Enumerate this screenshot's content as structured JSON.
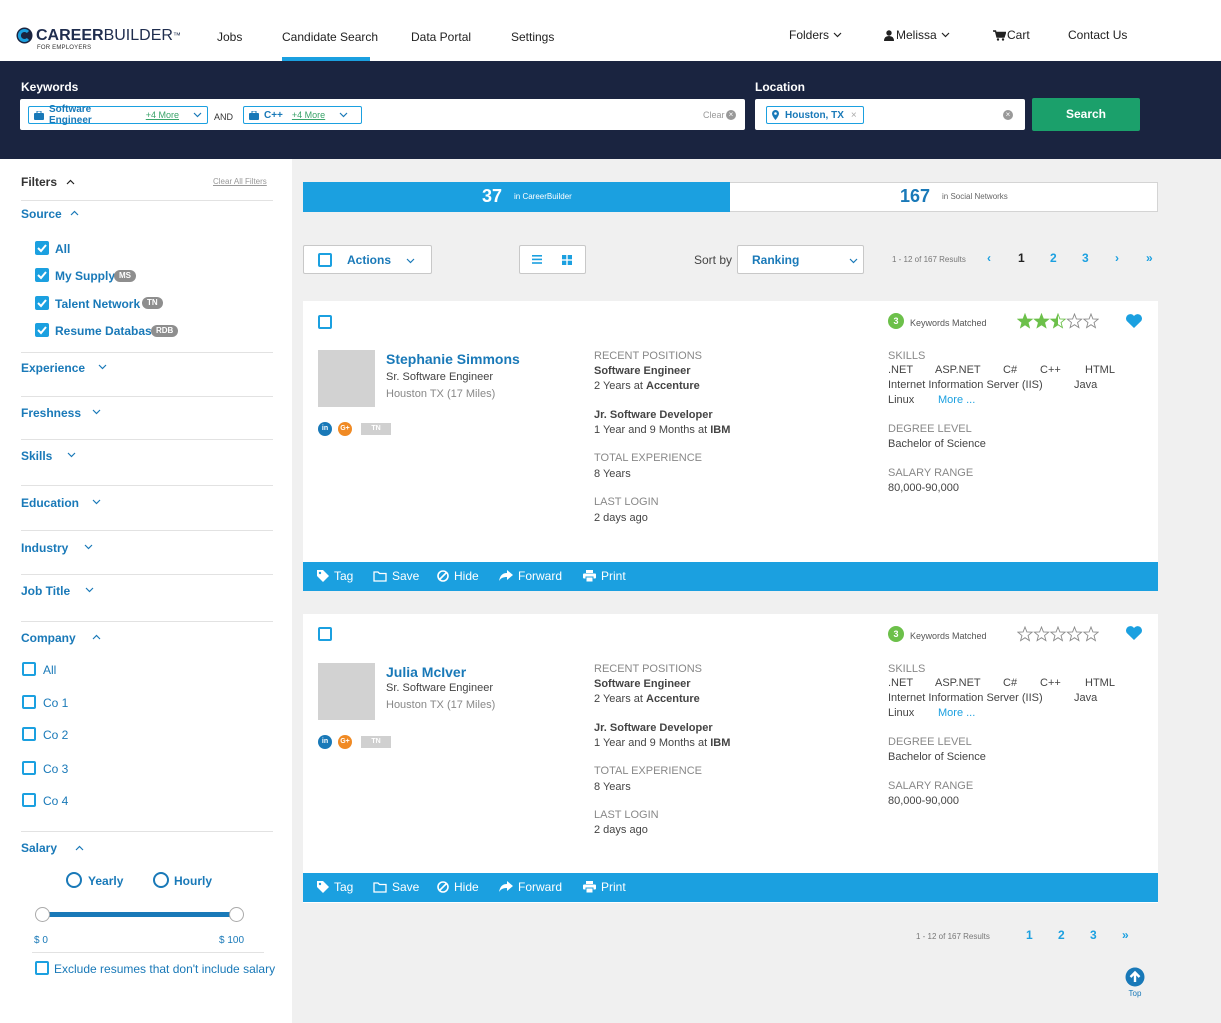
{
  "brand": {
    "name_bold": "CAREER",
    "name_light": "BUILDER",
    "tm": "™",
    "sub": "FOR EMPLOYERS",
    "accent": "#1ba0e0",
    "navy": "#1a2440",
    "green": "#1ba06b"
  },
  "nav": {
    "links": [
      "Jobs",
      "Candidate Search",
      "Data Portal",
      "Settings"
    ],
    "folders": "Folders",
    "user": "Melissa",
    "cart": "Cart",
    "contact": "Contact Us"
  },
  "search": {
    "keywords_label": "Keywords",
    "chip1": {
      "text": "Software Engineer",
      "more": "+4 More"
    },
    "and": "AND",
    "chip2": {
      "text": "C++",
      "more": "+4 More"
    },
    "clear": "Clear",
    "location_label": "Location",
    "location_chip": "Houston, TX",
    "button": "Search"
  },
  "filters": {
    "title": "Filters",
    "clear_all": "Clear All Filters",
    "source": {
      "title": "Source",
      "items": [
        {
          "label": "All",
          "badge": ""
        },
        {
          "label": "My Supply",
          "badge": "MS"
        },
        {
          "label": "Talent Network",
          "badge": "TN"
        },
        {
          "label": "Resume Database",
          "badge": "RDB"
        }
      ]
    },
    "sections": [
      "Experience",
      "Freshness",
      "Skills",
      "Education",
      "Industry",
      "Job Title"
    ],
    "company": {
      "title": "Company",
      "items": [
        "All",
        "Co 1",
        "Co 2",
        "Co 3",
        "Co 4"
      ]
    },
    "salary": {
      "title": "Salary",
      "yearly": "Yearly",
      "hourly": "Hourly",
      "min": "$ 0",
      "max": "$ 100",
      "exclude": "Exclude resumes that don't include salary"
    }
  },
  "tabs": {
    "cb_count": "37",
    "cb_label": "in CareerBuilder",
    "sn_count": "167",
    "sn_label": "in Social Networks"
  },
  "toolbar": {
    "actions": "Actions",
    "sort_by": "Sort by",
    "sort_value": "Ranking",
    "results": "1 - 12 of 167 Results",
    "pages": [
      "1",
      "2",
      "3"
    ]
  },
  "cards": [
    {
      "name": "Stephanie Simmons",
      "title": "Sr. Software Engineer",
      "location": "Houston TX (17 Miles)",
      "badge": "TN",
      "keywords_count": "3",
      "keywords_label": "Keywords Matched",
      "rating": 2.5,
      "recent_label": "RECENT POSITIONS",
      "pos1_title": "Software Engineer",
      "pos1_duration": "2 Years at",
      "pos1_company": "Accenture",
      "pos2_title": "Jr. Software Developer",
      "pos2_duration": "1 Year and 9 Months at",
      "pos2_company": "IBM",
      "total_label": "TOTAL EXPERIENCE",
      "total": "8 Years",
      "login_label": "LAST LOGIN",
      "login": "2 days ago",
      "skills_label": "SKILLS",
      "skills": [
        ".NET",
        "ASP.NET",
        "C#",
        "C++",
        "HTML",
        "Internet Information Server (IIS)",
        "Java",
        "Linux"
      ],
      "more": "More ...",
      "degree_label": "DEGREE LEVEL",
      "degree": "Bachelor of Science",
      "salary_label": "SALARY RANGE",
      "salary": "80,000-90,000"
    },
    {
      "name": "Julia McIver",
      "title": "Sr. Software Engineer",
      "location": "Houston TX (17 Miles)",
      "badge": "TN",
      "keywords_count": "3",
      "keywords_label": "Keywords Matched",
      "rating": 0,
      "recent_label": "RECENT POSITIONS",
      "pos1_title": "Software Engineer",
      "pos1_duration": "2 Years at",
      "pos1_company": "Accenture",
      "pos2_title": "Jr. Software Developer",
      "pos2_duration": "1 Year and 9 Months at",
      "pos2_company": "IBM",
      "total_label": "TOTAL EXPERIENCE",
      "total": "8 Years",
      "login_label": "LAST LOGIN",
      "login": "2 days ago",
      "skills_label": "SKILLS",
      "skills": [
        ".NET",
        "ASP.NET",
        "C#",
        "C++",
        "HTML",
        "Internet Information Server (IIS)",
        "Java",
        "Linux"
      ],
      "more": "More ...",
      "degree_label": "DEGREE LEVEL",
      "degree": "Bachelor of Science",
      "salary_label": "SALARY RANGE",
      "salary": "80,000-90,000"
    }
  ],
  "card_actions": [
    "Tag",
    "Save",
    "Hide",
    "Forward",
    "Print"
  ],
  "bottom": {
    "results": "1 - 12 of 167 Results",
    "pages": [
      "1",
      "2",
      "3"
    ],
    "top": "Top"
  }
}
